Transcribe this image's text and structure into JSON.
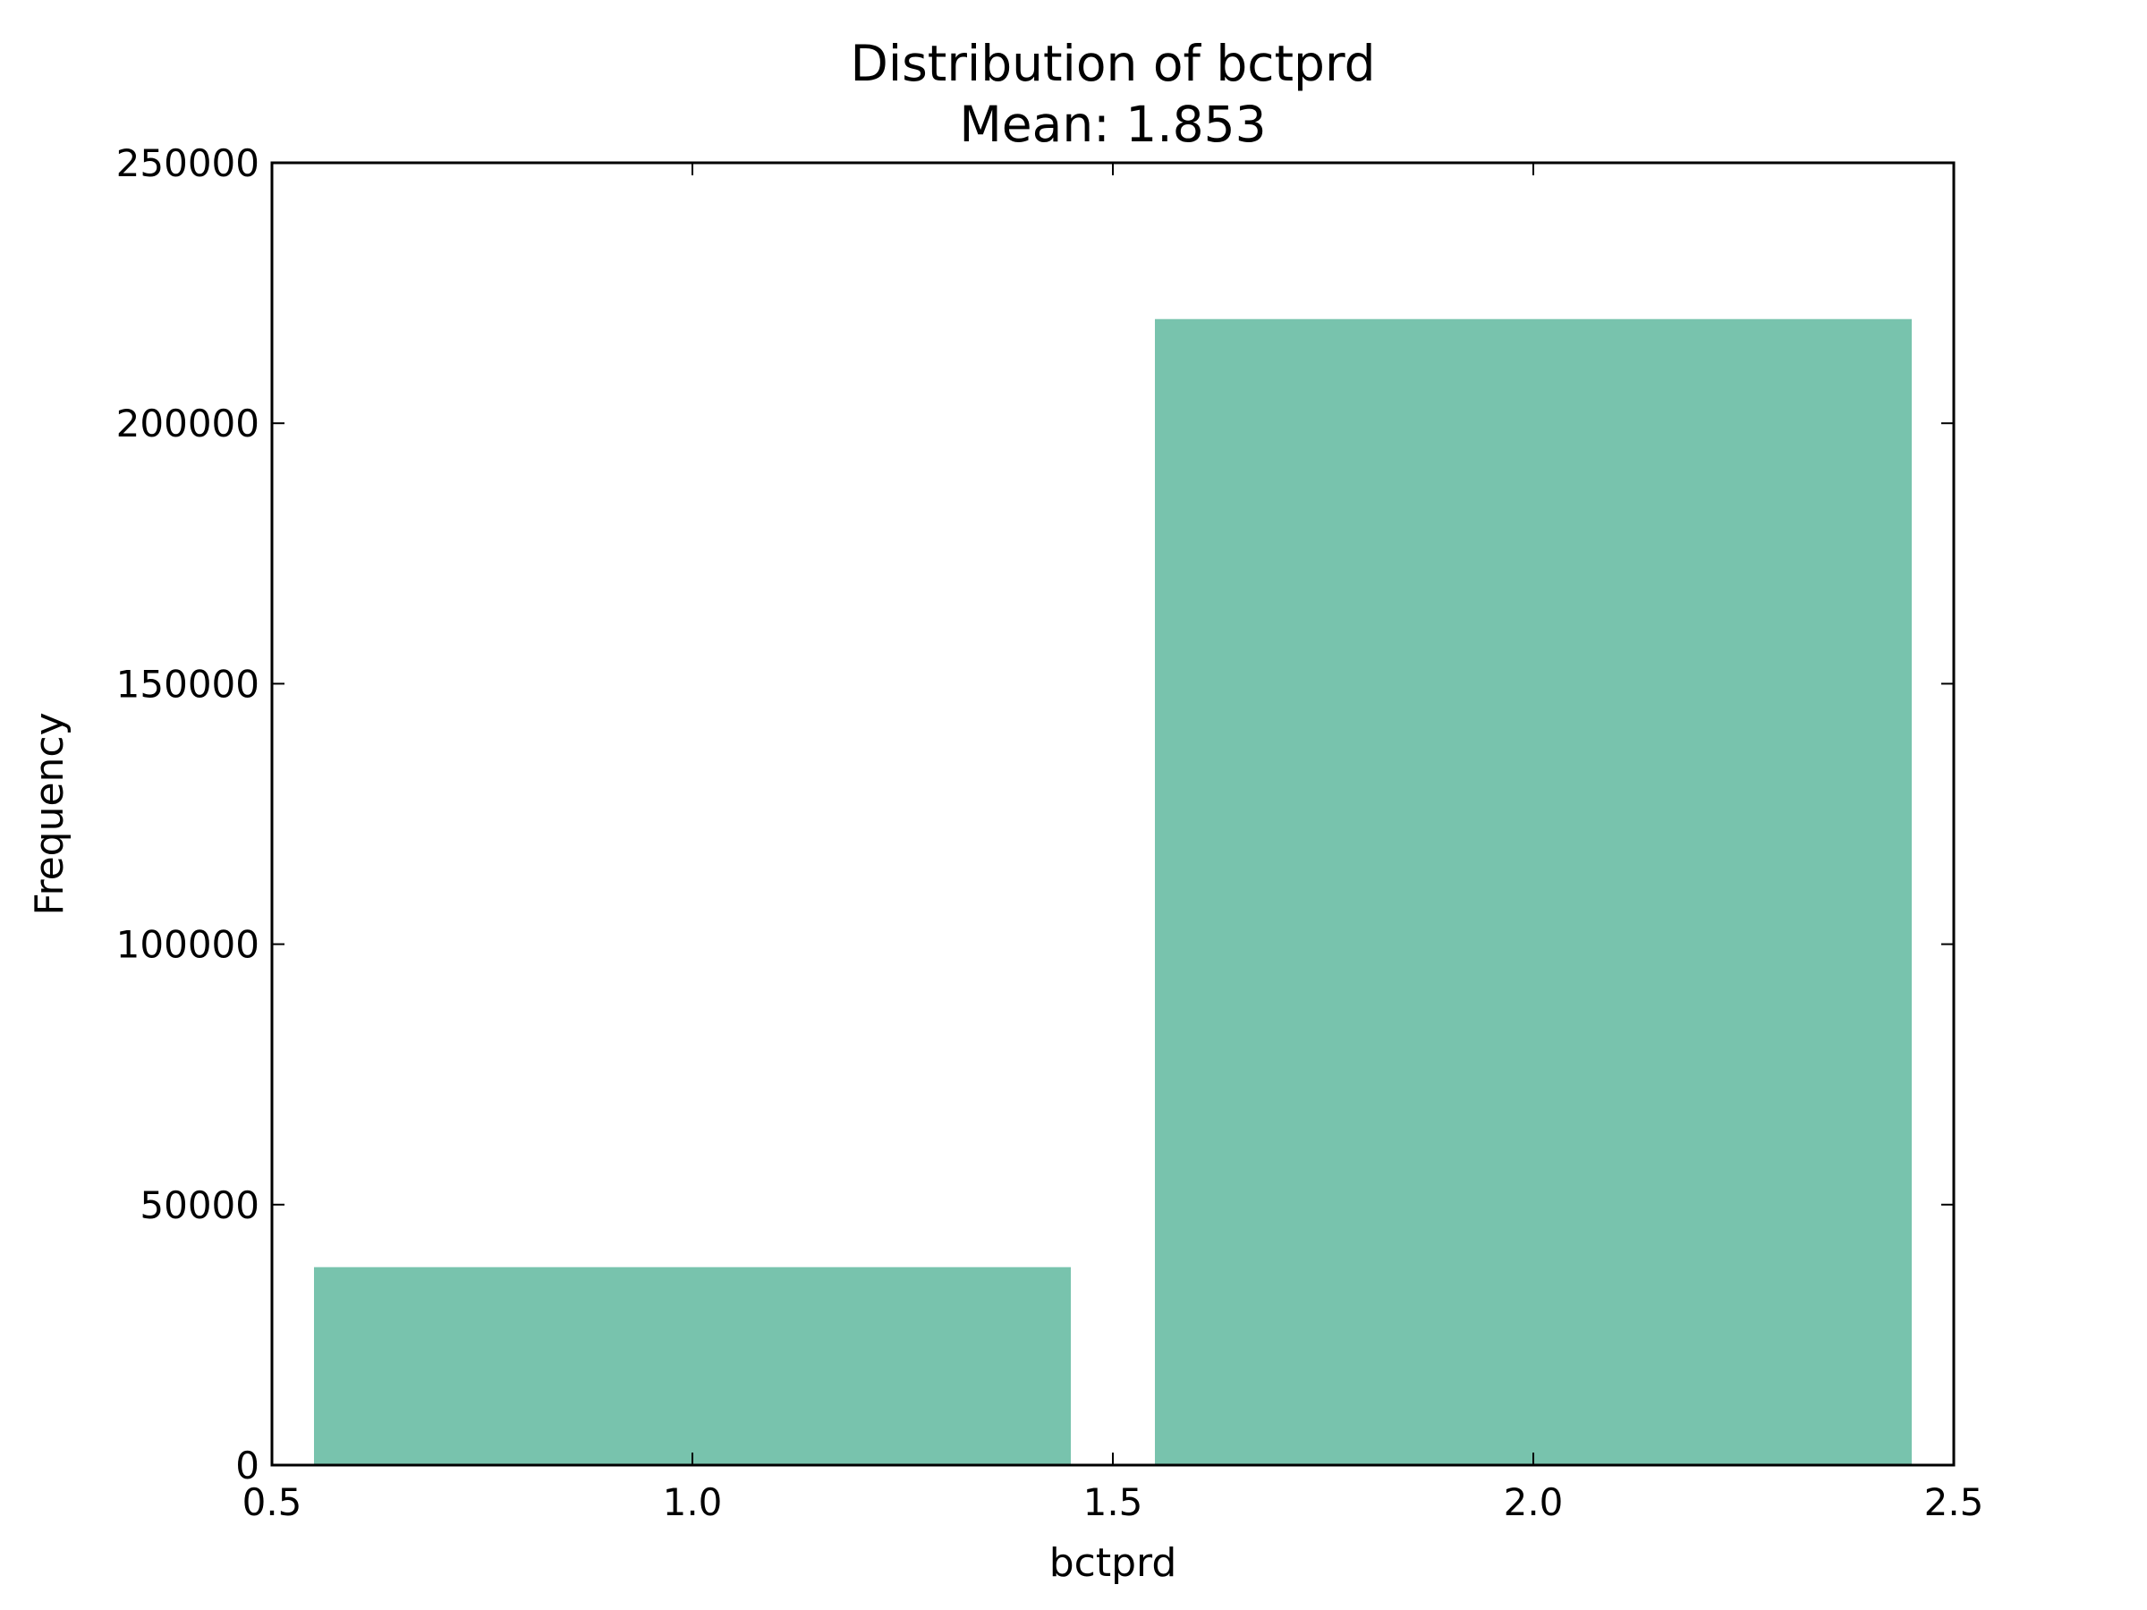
{
  "chart_data": {
    "type": "bar",
    "title": "Distribution of bctprd",
    "subtitle": "Mean: 1.853",
    "xlabel": "bctprd",
    "ylabel": "Frequency",
    "xlim": [
      0.5,
      2.5
    ],
    "ylim": [
      0,
      250000
    ],
    "xticks": [
      "0.5",
      "1.0",
      "1.5",
      "2.0",
      "2.5"
    ],
    "yticks": [
      "0",
      "50000",
      "100000",
      "150000",
      "200000",
      "250000"
    ],
    "bars": [
      {
        "x_start": 0.55,
        "x_end": 1.45,
        "value": 38000
      },
      {
        "x_start": 1.55,
        "x_end": 2.45,
        "value": 220000
      }
    ],
    "bar_color": "#78c3ad",
    "grid": false,
    "legend": "none"
  }
}
